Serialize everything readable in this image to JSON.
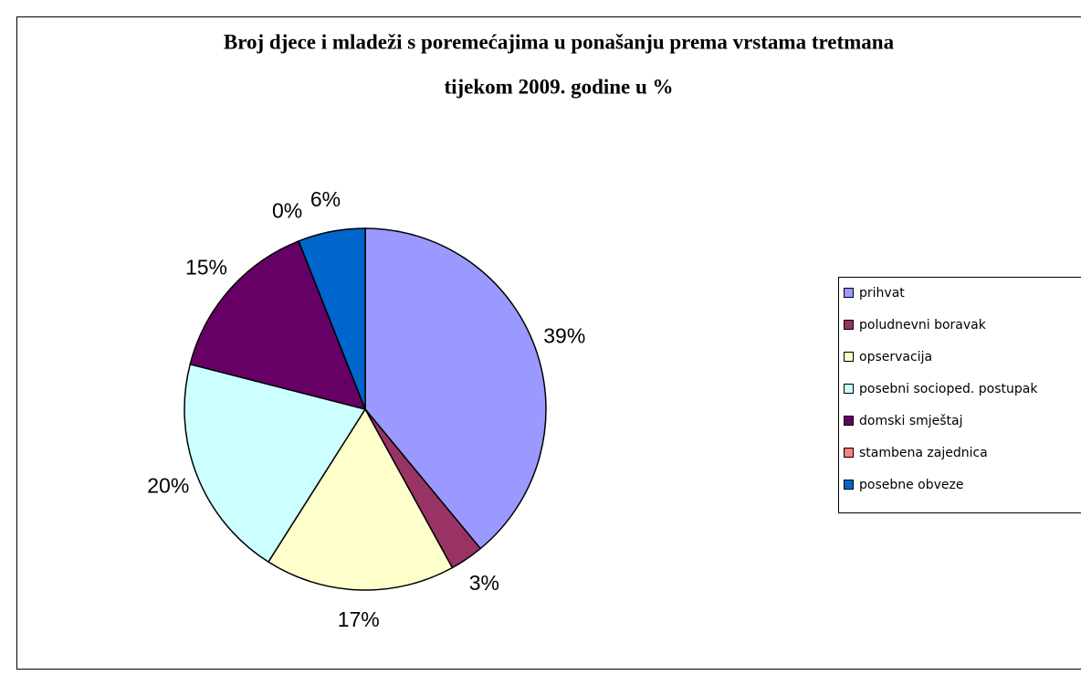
{
  "chart_data": {
    "type": "pie",
    "title": [
      "Broj djece i mladeži s poremećajima u ponašanju prema vrstama tretmana",
      "tijekom 2009. godine u %"
    ],
    "categories": [
      "prihvat",
      "poludnevni boravak",
      "opservacija",
      "posebni socioped. postupak",
      "domski smještaj",
      "stambena zajednica",
      "posebne obveze"
    ],
    "values": [
      39,
      3,
      17,
      20,
      15,
      0,
      6
    ],
    "value_labels": [
      "39%",
      "3%",
      "17%",
      "20%",
      "15%",
      "0%",
      "6%"
    ],
    "colors": [
      "#9999ff",
      "#993366",
      "#ffffcc",
      "#ccffff",
      "#660066",
      "#ff8080",
      "#0066cc"
    ],
    "legend": "right"
  }
}
